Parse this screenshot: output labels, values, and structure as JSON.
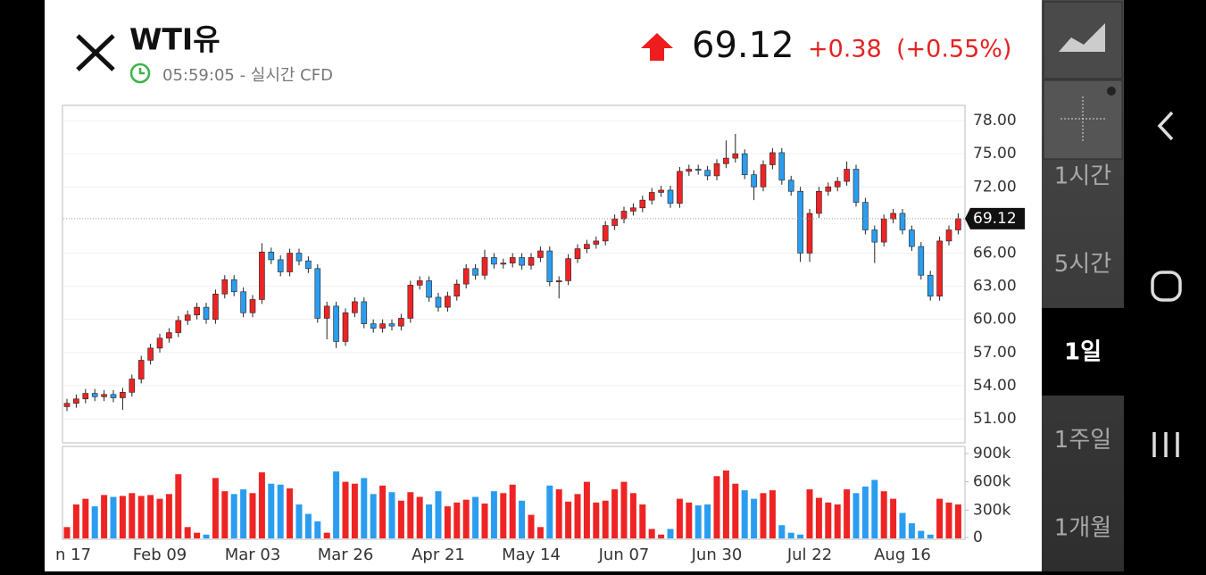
{
  "header": {
    "title": "WTI유",
    "time": "05:59:05 - 실시간 CFD",
    "price": "69.12",
    "change": "+0.38",
    "change_pct": "(+0.55%)"
  },
  "timeframes": [
    "1시간",
    "5시간",
    "1일",
    "1주일",
    "1개월"
  ],
  "selected_timeframe": 2,
  "chart_data": {
    "type": "candlestick",
    "categories": [
      "n 17",
      null,
      null,
      null,
      null,
      null,
      null,
      null,
      null,
      null,
      "Feb 09",
      null,
      null,
      null,
      null,
      null,
      null,
      null,
      null,
      null,
      "Mar 03",
      null,
      null,
      null,
      null,
      null,
      null,
      null,
      null,
      null,
      "Mar 26",
      null,
      null,
      null,
      null,
      null,
      null,
      null,
      null,
      null,
      "Apr 21",
      null,
      null,
      null,
      null,
      null,
      null,
      null,
      null,
      null,
      "May 14",
      null,
      null,
      null,
      null,
      null,
      null,
      null,
      null,
      null,
      "Jun 07",
      null,
      null,
      null,
      null,
      null,
      null,
      null,
      null,
      null,
      "Jun 30",
      null,
      null,
      null,
      null,
      null,
      null,
      null,
      null,
      null,
      "Jul 22",
      null,
      null,
      null,
      null,
      null,
      null,
      null,
      null,
      null,
      "Aug 16",
      null,
      null,
      null,
      null,
      null,
      null
    ],
    "open": [
      52.1,
      52.4,
      52.8,
      53.3,
      53.0,
      53.2,
      52.9,
      53.4,
      54.6,
      56.3,
      57.4,
      58.3,
      58.8,
      59.9,
      60.4,
      61.1,
      60.0,
      62.3,
      63.6,
      62.5,
      60.6,
      61.8,
      66.1,
      65.4,
      64.3,
      66.0,
      65.3,
      64.6,
      60.1,
      61.2,
      58.0,
      60.6,
      61.6,
      59.6,
      59.2,
      59.6,
      59.4,
      60.1,
      63.1,
      63.5,
      62.0,
      61.1,
      62.1,
      63.2,
      64.6,
      64.0,
      65.6,
      65.0,
      65.1,
      65.6,
      64.9,
      65.6,
      66.2,
      63.4,
      63.5,
      65.5,
      66.4,
      66.8,
      67.1,
      68.5,
      69.1,
      69.8,
      70.1,
      70.8,
      71.5,
      71.7,
      70.5,
      73.4,
      73.6,
      73.5,
      73.0,
      74.1,
      74.6,
      75.0,
      73.1,
      72.0,
      74.0,
      75.1,
      72.6,
      71.6,
      66.0,
      69.6,
      71.6,
      72.0,
      72.5,
      73.6,
      70.6,
      68.1,
      67.0,
      69.1,
      69.6,
      68.1,
      66.6,
      64.0,
      62.1,
      67.1,
      68.1
    ],
    "high": [
      52.8,
      53.2,
      53.7,
      53.7,
      53.6,
      53.6,
      53.8,
      55.0,
      56.7,
      57.8,
      58.7,
      59.2,
      60.3,
      60.8,
      61.5,
      61.5,
      62.7,
      64.0,
      64.0,
      62.9,
      62.2,
      66.9,
      66.5,
      65.8,
      66.4,
      66.4,
      65.7,
      65.0,
      61.6,
      61.6,
      61.0,
      62.0,
      62.0,
      60.0,
      60.0,
      60.0,
      60.5,
      63.5,
      63.9,
      63.9,
      62.4,
      62.5,
      63.6,
      65.0,
      65.0,
      66.3,
      66.0,
      65.5,
      66.0,
      66.0,
      66.0,
      66.6,
      66.6,
      63.9,
      65.9,
      66.8,
      67.2,
      67.5,
      68.9,
      69.5,
      70.2,
      70.5,
      71.2,
      71.9,
      72.1,
      72.1,
      73.8,
      74.0,
      74.0,
      73.9,
      74.5,
      76.2,
      76.8,
      75.4,
      73.5,
      74.4,
      75.5,
      75.5,
      73.0,
      72.0,
      70.0,
      72.0,
      72.4,
      72.9,
      74.3,
      74.0,
      71.0,
      68.5,
      69.5,
      70.0,
      70.0,
      68.5,
      67.0,
      64.4,
      67.5,
      68.5,
      69.6
    ],
    "low": [
      51.7,
      52.0,
      52.4,
      52.6,
      52.6,
      52.5,
      51.8,
      53.0,
      54.2,
      55.9,
      57.0,
      57.9,
      58.4,
      59.5,
      60.0,
      59.6,
      59.6,
      61.9,
      62.1,
      60.2,
      60.2,
      61.4,
      65.0,
      63.9,
      63.9,
      64.9,
      64.2,
      59.7,
      58.2,
      57.4,
      57.6,
      60.2,
      59.2,
      58.8,
      58.8,
      59.0,
      59.0,
      59.7,
      62.7,
      61.6,
      60.7,
      60.7,
      61.7,
      62.8,
      63.6,
      63.6,
      64.6,
      64.6,
      64.7,
      64.5,
      64.5,
      65.2,
      63.0,
      61.9,
      63.1,
      65.1,
      66.0,
      66.4,
      66.7,
      68.1,
      68.7,
      69.4,
      69.7,
      70.4,
      71.1,
      70.1,
      70.1,
      73.0,
      73.1,
      72.6,
      72.6,
      73.7,
      74.2,
      72.7,
      70.8,
      71.6,
      73.6,
      72.2,
      71.2,
      65.2,
      65.2,
      69.2,
      71.2,
      71.6,
      72.1,
      70.2,
      67.7,
      65.1,
      66.6,
      68.7,
      67.7,
      66.2,
      63.6,
      61.7,
      61.7,
      66.7,
      67.7
    ],
    "close": [
      52.4,
      52.8,
      53.3,
      53.0,
      53.2,
      52.9,
      53.4,
      54.6,
      56.3,
      57.4,
      58.3,
      58.8,
      59.9,
      60.4,
      61.1,
      60.0,
      62.3,
      63.6,
      62.5,
      60.6,
      61.8,
      66.1,
      65.4,
      64.3,
      66.0,
      65.3,
      64.6,
      60.1,
      61.2,
      58.0,
      60.6,
      61.6,
      59.6,
      59.2,
      59.6,
      59.4,
      60.1,
      63.1,
      63.5,
      62.0,
      61.1,
      62.1,
      63.2,
      64.6,
      64.0,
      65.6,
      65.0,
      65.1,
      65.6,
      64.9,
      65.6,
      66.2,
      63.4,
      63.5,
      65.5,
      66.4,
      66.8,
      67.1,
      68.5,
      69.1,
      69.8,
      70.1,
      70.8,
      71.5,
      71.7,
      70.5,
      73.4,
      73.6,
      73.5,
      73.0,
      74.1,
      74.6,
      75.0,
      73.1,
      72.0,
      74.0,
      75.1,
      72.6,
      71.6,
      66.0,
      69.6,
      71.6,
      72.0,
      72.5,
      73.6,
      70.6,
      68.1,
      67.0,
      69.1,
      69.6,
      68.1,
      66.6,
      64.0,
      62.1,
      67.1,
      68.1,
      69.12
    ],
    "volume": [
      120000,
      360000,
      420000,
      340000,
      460000,
      440000,
      450000,
      480000,
      450000,
      460000,
      420000,
      470000,
      680000,
      120000,
      60000,
      40000,
      640000,
      500000,
      470000,
      520000,
      480000,
      700000,
      580000,
      570000,
      530000,
      360000,
      260000,
      180000,
      60000,
      710000,
      600000,
      580000,
      640000,
      470000,
      560000,
      490000,
      400000,
      490000,
      440000,
      360000,
      500000,
      340000,
      380000,
      410000,
      440000,
      370000,
      500000,
      480000,
      570000,
      400000,
      250000,
      120000,
      560000,
      520000,
      390000,
      470000,
      600000,
      380000,
      400000,
      520000,
      600000,
      480000,
      360000,
      100000,
      40000,
      100000,
      420000,
      380000,
      350000,
      360000,
      660000,
      720000,
      580000,
      510000,
      420000,
      480000,
      510000,
      140000,
      60000,
      40000,
      520000,
      430000,
      380000,
      360000,
      520000,
      480000,
      550000,
      620000,
      500000,
      420000,
      270000,
      160000,
      80000,
      40000,
      420000,
      380000,
      360000
    ],
    "up_color": "#ee2424",
    "down_color": "#2a9df0",
    "ylim": [
      48.82,
      79.38
    ],
    "yticks": [
      {
        "value": 51,
        "label": "51.00"
      },
      {
        "value": 54,
        "label": "54.00"
      },
      {
        "value": 57,
        "label": "57.00"
      },
      {
        "value": 60,
        "label": "60.00"
      },
      {
        "value": 63,
        "label": "63.00"
      },
      {
        "value": 66,
        "label": "66.00"
      },
      {
        "value": 72,
        "label": "72.00"
      },
      {
        "value": 75,
        "label": "75.00"
      },
      {
        "value": 78,
        "label": "78.00"
      }
    ],
    "last_price": {
      "value": 69.12,
      "label": "69.12"
    },
    "volume_ylim": [
      0,
      975000
    ],
    "volume_ticks": [
      0,
      {
        "value": 300000,
        "label": "300k"
      },
      {
        "value": 600000,
        "label": "600k"
      },
      {
        "value": 900000,
        "label": "900k"
      }
    ],
    "grid": true
  }
}
